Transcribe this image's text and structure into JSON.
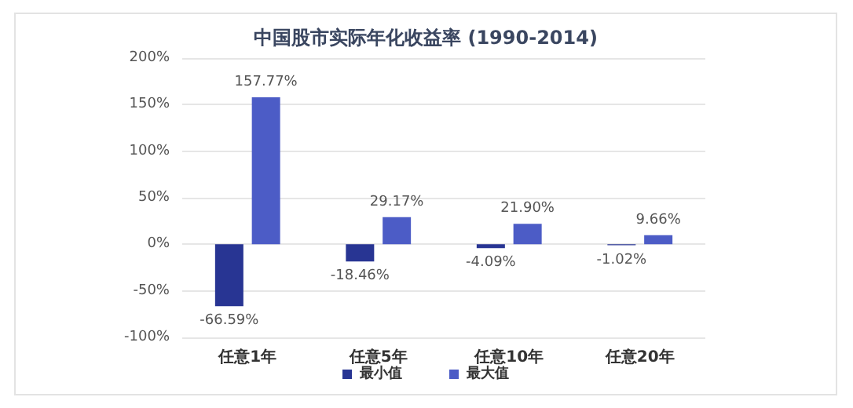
{
  "chart_data": {
    "type": "bar",
    "title": "中国股市实际年化收益率 (1990-2014)",
    "categories": [
      "任意1年",
      "任意5年",
      "任意10年",
      "任意20年"
    ],
    "series": [
      {
        "name": "最小值",
        "color": "#283593",
        "values": [
          -66.59,
          -18.46,
          -4.09,
          -1.02
        ],
        "value_labels": [
          "-66.59%",
          "-18.46%",
          "-4.09%",
          "-1.02%"
        ]
      },
      {
        "name": "最大值",
        "color": "#4c5cc6",
        "values": [
          157.77,
          29.17,
          21.9,
          9.66
        ],
        "value_labels": [
          "157.77%",
          "29.17%",
          "21.90%",
          "9.66%"
        ]
      }
    ],
    "ylim": [
      -100,
      200
    ],
    "yticks": [
      {
        "value": -100,
        "label": "-100%"
      },
      {
        "value": -50,
        "label": "-50%"
      },
      {
        "value": 0,
        "label": "0%"
      },
      {
        "value": 50,
        "label": "50%"
      },
      {
        "value": 100,
        "label": "100%"
      },
      {
        "value": 150,
        "label": "150%"
      },
      {
        "value": 200,
        "label": "200%"
      }
    ],
    "grid": "y",
    "legend": "bottom"
  }
}
